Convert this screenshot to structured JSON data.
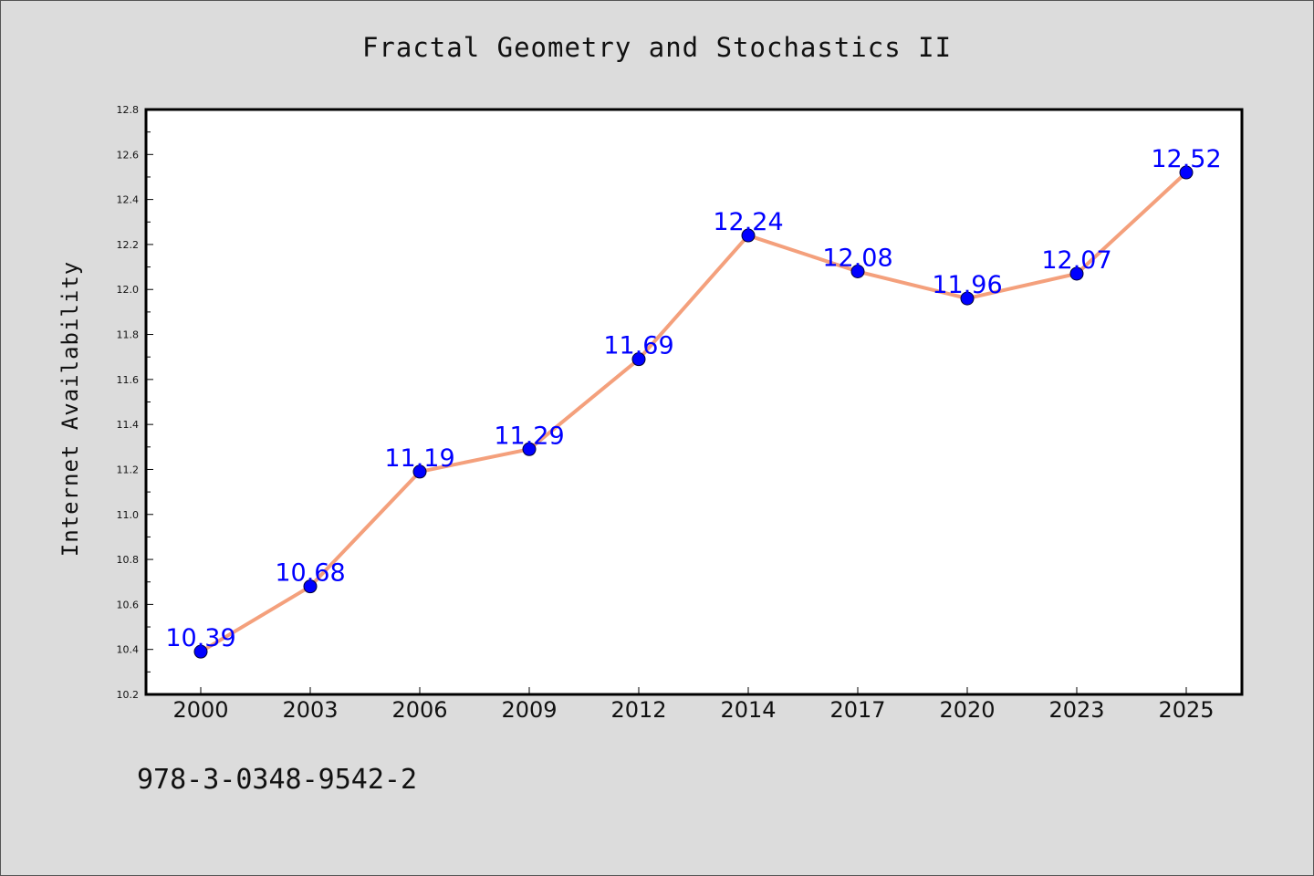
{
  "chart_data": {
    "type": "line",
    "title": "Fractal Geometry and Stochastics II",
    "xlabel": "",
    "ylabel": "Internet Availability",
    "categories": [
      "2000",
      "2003",
      "2006",
      "2009",
      "2012",
      "2014",
      "2017",
      "2020",
      "2023",
      "2025"
    ],
    "values": [
      10.39,
      10.68,
      11.19,
      11.29,
      11.69,
      12.24,
      12.08,
      11.96,
      12.07,
      12.52
    ],
    "data_labels": [
      "10.39",
      "10.68",
      "11.19",
      "11.29",
      "11.69",
      "12.24",
      "12.08",
      "11.96",
      "12.07",
      "12.52"
    ],
    "ylim": [
      10.2,
      12.8
    ],
    "yticks": [
      "10.2",
      "10.4",
      "10.6",
      "10.8",
      "11.0",
      "11.2",
      "11.4",
      "11.6",
      "11.8",
      "12.0",
      "12.2",
      "12.4",
      "12.6",
      "12.8"
    ],
    "grid": false,
    "line_color": "#f4a07c",
    "marker_color": "#0000ff",
    "label_color": "#0000ff"
  },
  "footer": {
    "isbn": "978-3-0348-9542-2"
  }
}
